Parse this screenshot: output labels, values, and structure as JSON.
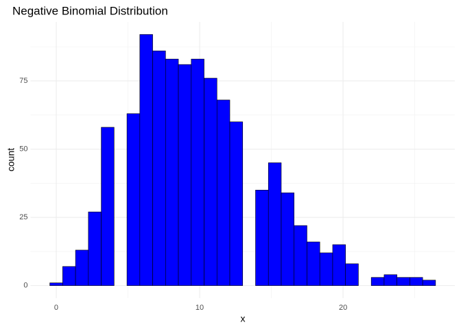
{
  "chart_data": {
    "type": "histogram",
    "title": "Negative Binomial Distribution",
    "x_label": "x",
    "y_label": "count",
    "bins": [
      -0.4483,
      0.4483,
      1.3448,
      2.2414,
      3.1379,
      4.0345,
      4.931,
      5.8276,
      6.7241,
      7.6207,
      8.5172,
      9.4138,
      10.3103,
      11.2069,
      12.1034,
      13.0,
      13.8966,
      14.7931,
      15.6897,
      16.5862,
      17.4828,
      18.3793,
      19.2759,
      20.1724,
      21.069,
      21.9655,
      22.8621,
      23.7586,
      24.6552,
      25.5517,
      26.4483
    ],
    "values": [
      1,
      7,
      13,
      27,
      58,
      0,
      63,
      92,
      86,
      83,
      81,
      83,
      76,
      68,
      60,
      0,
      35,
      45,
      34,
      22,
      16,
      12,
      15,
      8,
      0,
      3,
      4,
      3,
      3,
      2
    ],
    "color": "#0000ff",
    "edge_color": "#000000",
    "xlim": [
      -1.793,
      27.793
    ],
    "xticks": [
      0,
      10,
      20
    ],
    "ylim": [
      -4.6,
      96.6
    ],
    "yticks": [
      0,
      25,
      50,
      75
    ],
    "x_minor_grid": [
      5,
      15,
      25
    ],
    "y_minor_grid": [
      12.5,
      37.5,
      62.5,
      87.5
    ],
    "grid": true
  }
}
